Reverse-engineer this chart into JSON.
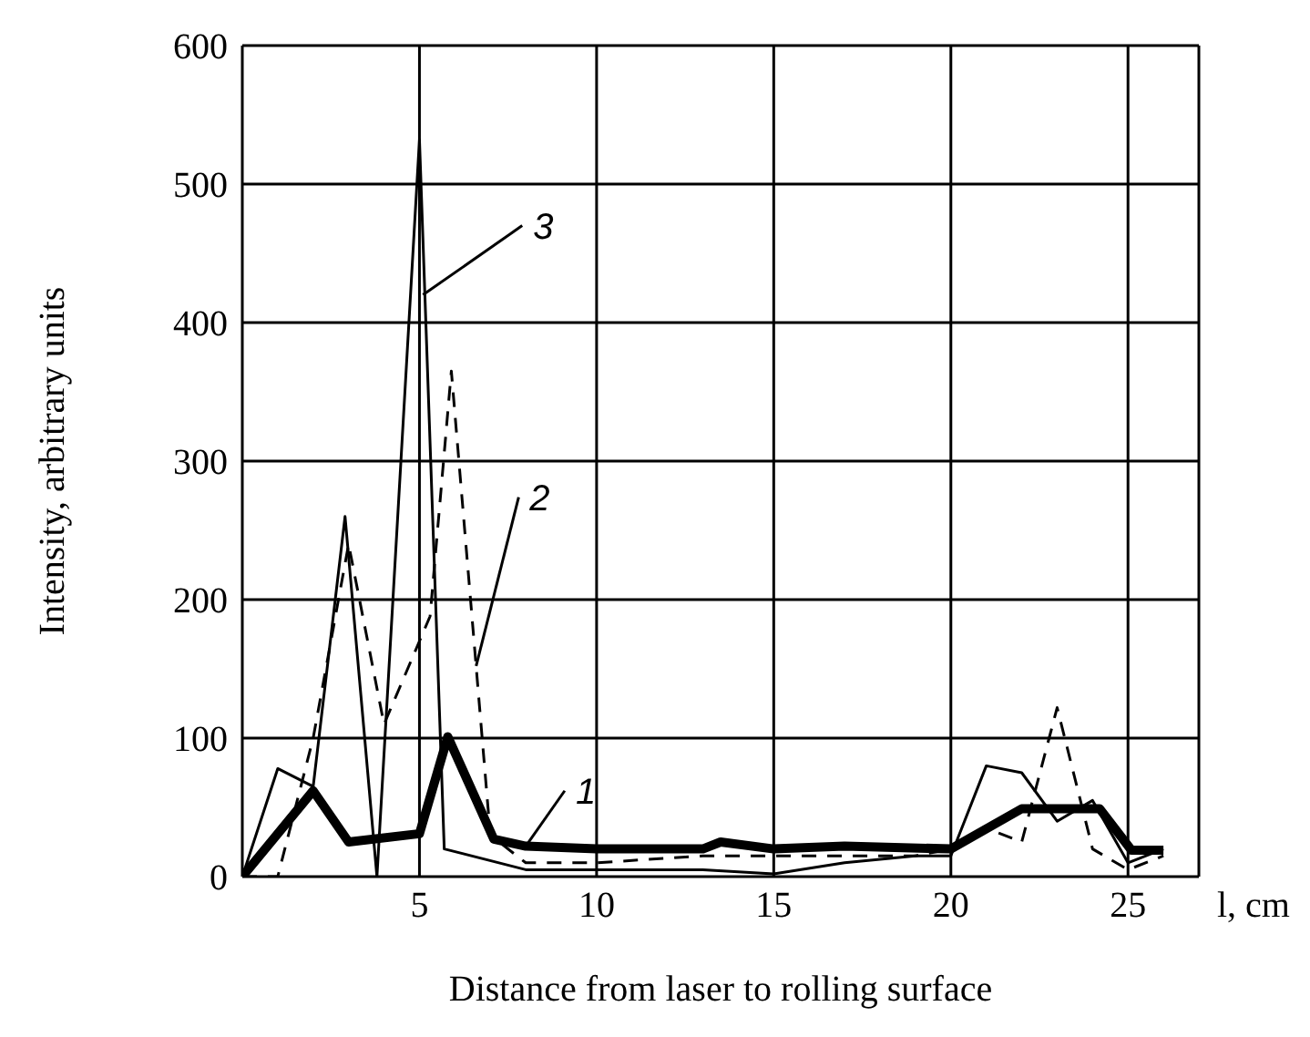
{
  "chart_data": {
    "type": "line",
    "xlabel": "Distance from laser to rolling surface",
    "ylabel": "Intensity, arbitrary units",
    "series": [
      {
        "name": null,
        "color": "#000000",
        "line_style": "solid",
        "x": [
          0,
          2,
          3,
          5,
          5.8,
          7.1,
          8,
          10,
          12,
          13,
          13.5,
          15,
          17,
          20,
          22,
          24.2,
          25.1,
          26
        ],
        "values": [
          0,
          62,
          25,
          31,
          101,
          27,
          22,
          20,
          20,
          20,
          25,
          20,
          22,
          20,
          49,
          49,
          19,
          19
        ]
      },
      {
        "name": null,
        "color": "#000000",
        "line_style": "dashed",
        "x": [
          0,
          1,
          2,
          3,
          4,
          5.3,
          5.9,
          7,
          8,
          10,
          13,
          15,
          19,
          20,
          21,
          22,
          23,
          24,
          25,
          26
        ],
        "values": [
          0,
          0,
          100,
          240,
          110,
          188,
          365,
          30,
          10,
          10,
          15,
          15,
          15,
          20,
          35,
          25,
          122,
          20,
          5,
          15
        ]
      },
      {
        "name": null,
        "color": "#000000",
        "line_style": "solid",
        "x": [
          0,
          1,
          2,
          2.9,
          3.8,
          5,
          5.7,
          8,
          10,
          13,
          15,
          17,
          19,
          20,
          21,
          22,
          23,
          24,
          25,
          26
        ],
        "values": [
          0,
          78,
          65,
          260,
          0,
          532,
          20,
          5,
          5,
          5,
          2,
          10,
          15,
          15,
          80,
          75,
          40,
          55,
          10,
          20
        ]
      }
    ],
    "annotations": [
      {
        "text": "1",
        "x": 8,
        "y": 22
      },
      {
        "text": "2",
        "x": 6.6,
        "y": 152
      },
      {
        "text": "3",
        "x": 5.1,
        "y": 420
      },
      "l, cm"
    ],
    "xlim": [
      0,
      27
    ],
    "xticks": [
      5,
      10,
      15,
      20,
      25
    ],
    "ylim": [
      0,
      600
    ],
    "yticks": [
      0,
      100,
      200,
      300,
      400,
      500,
      600
    ],
    "grid": true,
    "legend": false
  }
}
